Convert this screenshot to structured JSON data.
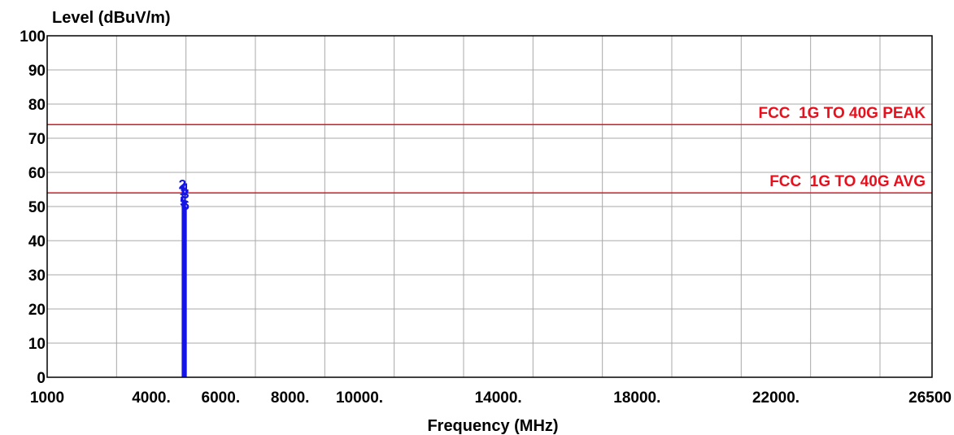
{
  "chart_data": {
    "type": "line",
    "ylabel": "Level (dBuV/m)",
    "xlabel": "Frequency (MHz)",
    "xlim": [
      1000,
      26500
    ],
    "ylim": [
      0,
      100
    ],
    "grid": true,
    "x_ticks": [
      {
        "value": 1000,
        "label": "1000"
      },
      {
        "value": 4000,
        "label": "4000."
      },
      {
        "value": 6000,
        "label": "6000."
      },
      {
        "value": 8000,
        "label": "8000."
      },
      {
        "value": 10000,
        "label": "10000."
      },
      {
        "value": 14000,
        "label": "14000."
      },
      {
        "value": 18000,
        "label": "18000."
      },
      {
        "value": 22000,
        "label": "22000."
      },
      {
        "value": 26500,
        "label": "26500"
      }
    ],
    "x_gridlines": [
      1000,
      3000,
      5000,
      7000,
      9000,
      11000,
      13000,
      15000,
      17000,
      19000,
      21000,
      23000,
      25000,
      26500
    ],
    "y_ticks": [
      {
        "value": 0,
        "label": "0"
      },
      {
        "value": 10,
        "label": "10"
      },
      {
        "value": 20,
        "label": "20"
      },
      {
        "value": 30,
        "label": "30"
      },
      {
        "value": 40,
        "label": "40"
      },
      {
        "value": 50,
        "label": "50"
      },
      {
        "value": 60,
        "label": "60"
      },
      {
        "value": 70,
        "label": "70"
      },
      {
        "value": 80,
        "label": "80"
      },
      {
        "value": 90,
        "label": "90"
      },
      {
        "value": 100,
        "label": "100"
      }
    ],
    "limit_lines": [
      {
        "name": "FCC  1G TO 40G PEAK",
        "value": 74,
        "color": "#e8101c"
      },
      {
        "name": "FCC  1G TO 40G AVG",
        "value": 54,
        "color": "#e8101c"
      }
    ],
    "trace_color": "#1414e6",
    "markers": [
      {
        "label": "2",
        "x": 4900,
        "y": 56.5
      },
      {
        "label": "4",
        "x": 4960,
        "y": 55.5
      },
      {
        "label": "1",
        "x": 4920,
        "y": 54.8
      },
      {
        "label": "3",
        "x": 4980,
        "y": 53.8
      },
      {
        "label": "5",
        "x": 4930,
        "y": 51.5
      },
      {
        "label": "6",
        "x": 4990,
        "y": 50.5
      }
    ],
    "spikes": [
      {
        "x": 4900,
        "y": 55
      },
      {
        "x": 4935,
        "y": 52
      },
      {
        "x": 4970,
        "y": 54
      },
      {
        "x": 5000,
        "y": 50
      }
    ]
  }
}
